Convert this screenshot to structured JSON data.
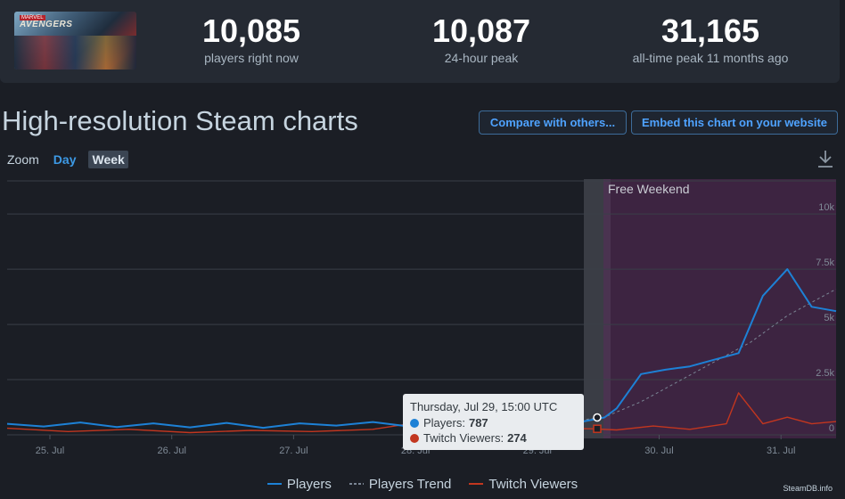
{
  "game": {
    "capsule_logo": "AVENGERS",
    "capsule_badge": "MARVEL",
    "capsule_icon": "game-capsule-image"
  },
  "stats": {
    "now_value": "10,085",
    "now_label": "players right now",
    "peak24_value": "10,087",
    "peak24_label": "24-hour peak",
    "alltime_value": "31,165",
    "alltime_label": "all-time peak 11 months ago"
  },
  "section": {
    "title": "High-resolution Steam charts",
    "compare_label": "Compare with others...",
    "embed_label": "Embed this chart on your website"
  },
  "zoom": {
    "label": "Zoom",
    "day_label": "Day",
    "week_label": "Week",
    "selected": "Week"
  },
  "icons": {
    "download": "download-icon"
  },
  "colors": {
    "players": "#1d81d6",
    "trend": "#7a8594",
    "twitch": "#c2361f",
    "event_band": "#3d2441",
    "highlight": "#3a3d45"
  },
  "chart_data": {
    "type": "line",
    "x_ticks": [
      "25. Jul",
      "26. Jul",
      "27. Jul",
      "28. Jul",
      "29. Jul",
      "30. Jul",
      "31. Jul"
    ],
    "y_ticks": [
      "0",
      "2.5k",
      "5k",
      "7.5k",
      "10k"
    ],
    "ylim": [
      0,
      11500
    ],
    "annotation": "Free Weekend",
    "series": [
      {
        "name": "Players",
        "x": [
          0.0,
          0.3,
          0.6,
          0.9,
          1.2,
          1.5,
          1.8,
          2.1,
          2.4,
          2.7,
          3.0,
          3.3,
          3.5,
          3.7,
          3.9,
          4.1,
          4.3,
          4.5,
          4.7,
          4.9,
          5.0,
          5.2,
          5.4,
          5.6,
          5.8,
          6.0,
          6.2,
          6.4,
          6.6,
          6.8
        ],
        "values": [
          500,
          380,
          560,
          350,
          520,
          340,
          540,
          320,
          520,
          420,
          580,
          380,
          620,
          470,
          720,
          500,
          650,
          400,
          580,
          787,
          1200,
          2750,
          2950,
          3100,
          3400,
          3700,
          6300,
          7500,
          5800,
          5600
        ]
      },
      {
        "name": "Players Trend",
        "x": [
          3.7,
          4.0,
          4.3,
          4.6,
          4.9,
          5.2,
          5.5,
          5.8,
          6.1,
          6.4,
          6.8
        ],
        "values": [
          480,
          500,
          520,
          600,
          800,
          1500,
          2400,
          3300,
          4200,
          5400,
          6600
        ]
      },
      {
        "name": "Twitch Viewers",
        "x": [
          0.0,
          0.5,
          1.0,
          1.5,
          2.0,
          2.5,
          3.0,
          3.3,
          3.6,
          3.9,
          4.2,
          4.5,
          4.8,
          5.0,
          5.3,
          5.6,
          5.9,
          6.0,
          6.2,
          6.4,
          6.6,
          6.8
        ],
        "values": [
          300,
          150,
          250,
          100,
          200,
          150,
          250,
          500,
          300,
          350,
          200,
          300,
          274,
          220,
          400,
          250,
          500,
          1900,
          500,
          800,
          500,
          600
        ]
      }
    ]
  },
  "tooltip": {
    "date": "Thursday, Jul 29, 15:00 UTC",
    "players_label": "Players:",
    "players_value": "787",
    "twitch_label": "Twitch Viewers:",
    "twitch_value": "274"
  },
  "legend": {
    "players": "Players",
    "trend": "Players Trend",
    "twitch": "Twitch Viewers"
  },
  "credit": "SteamDB.info"
}
